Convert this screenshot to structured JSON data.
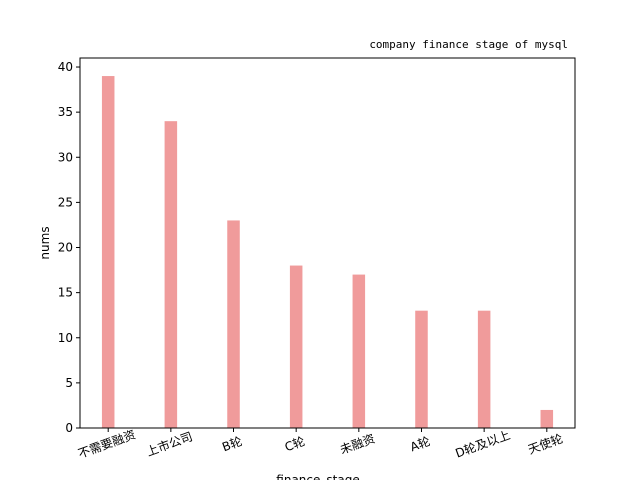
{
  "chart_data": {
    "type": "bar",
    "title": "company finance stage of mysql",
    "xlabel": "finance_stage",
    "ylabel": "nums",
    "categories": [
      "不需要融资",
      "上市公司",
      "B轮",
      "C轮",
      "未融资",
      "A轮",
      "D轮及以上",
      "天使轮"
    ],
    "values": [
      39,
      34,
      23,
      18,
      17,
      13,
      13,
      2
    ],
    "color": "#f09b9b",
    "ylim": [
      0,
      41
    ],
    "yticks": [
      0,
      5,
      10,
      15,
      20,
      25,
      30,
      35,
      40
    ]
  }
}
